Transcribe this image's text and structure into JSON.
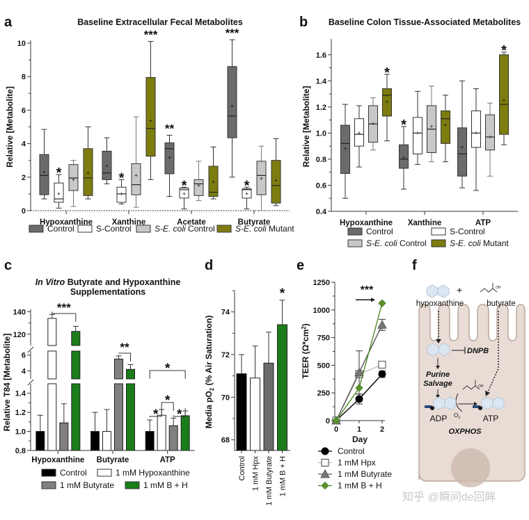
{
  "colors": {
    "control_dark": "#6b6b6b",
    "s_control": "#ffffff",
    "s_ecoli_control": "#c8c8c8",
    "s_ecoli_mutant": "#7d7d0f",
    "black": "#000000",
    "butyrate_gray": "#808080",
    "bh_green": "#1a7d1a",
    "cell_fill": "#e8dcd5",
    "cell_stroke": "#b9a79c",
    "molecule": "#dbe6f2",
    "watermark": "#c8c8c8"
  },
  "panels": {
    "a": {
      "letter": "a"
    },
    "b": {
      "letter": "b"
    },
    "c": {
      "letter": "c"
    },
    "d": {
      "letter": "d"
    },
    "e": {
      "letter": "e"
    },
    "f": {
      "letter": "f"
    }
  },
  "chart_data": [
    {
      "id": "a",
      "type": "box",
      "title": "Baseline Extracellular Fecal Metabolites",
      "ylabel": "Relative [Metabolite]",
      "xlabel": "",
      "ylim": [
        0,
        10
      ],
      "yticks": [
        0,
        2,
        4,
        6,
        8,
        10
      ],
      "categories": [
        "Hypoxanthine",
        "Xanthine",
        "Acetate",
        "Butyrate"
      ],
      "legend": [
        "Control",
        "S-Control",
        "S-E. coli Control",
        "S-E. coli Mutant"
      ],
      "legend_position": "bottom",
      "series": [
        {
          "name": "Control",
          "boxes": [
            {
              "min": 0.7,
              "q1": 0.95,
              "median": 2.1,
              "q3": 3.35,
              "max": 4.85,
              "mean": 2.3
            },
            {
              "min": 1.6,
              "q1": 1.85,
              "median": 2.25,
              "q3": 3.55,
              "max": 4.35,
              "mean": 2.65
            },
            {
              "min": 0.85,
              "q1": 2.2,
              "median": 3.7,
              "q3": 4.05,
              "max": 4.5,
              "mean": 3.15
            },
            {
              "min": 2.0,
              "q1": 4.35,
              "median": 5.65,
              "q3": 8.6,
              "max": 10.2,
              "mean": 6.25
            }
          ]
        },
        {
          "name": "S-Control",
          "boxes": [
            {
              "min": 0.15,
              "q1": 0.5,
              "median": 0.7,
              "q3": 1.65,
              "max": 2.15,
              "mean": 1.0
            },
            {
              "min": 0.4,
              "q1": 0.5,
              "median": 1.0,
              "q3": 1.4,
              "max": 1.85,
              "mean": 1.0
            },
            {
              "min": 0.1,
              "q1": 0.75,
              "median": 1.25,
              "q3": 1.35,
              "max": 1.4,
              "mean": 1.0
            },
            {
              "min": 0.1,
              "q1": 0.75,
              "median": 1.25,
              "q3": 1.3,
              "max": 1.4,
              "mean": 1.0
            }
          ]
        },
        {
          "name": "S-E. coli Control",
          "boxes": [
            {
              "min": 0.25,
              "q1": 1.2,
              "median": 1.95,
              "q3": 2.75,
              "max": 3.0,
              "mean": 1.85
            },
            {
              "min": 0.2,
              "q1": 0.95,
              "median": 1.55,
              "q3": 2.8,
              "max": 5.6,
              "mean": 2.1
            },
            {
              "min": 0.6,
              "q1": 0.9,
              "median": 1.6,
              "q3": 1.85,
              "max": 2.95,
              "mean": 1.5
            },
            {
              "min": 0.0,
              "q1": 0.95,
              "median": 2.1,
              "q3": 2.95,
              "max": 3.85,
              "mean": 1.9
            }
          ]
        },
        {
          "name": "S-E. coli Mutant",
          "boxes": [
            {
              "min": 0.7,
              "q1": 0.9,
              "median": 1.95,
              "q3": 3.7,
              "max": 5.0,
              "mean": 2.25
            },
            {
              "min": 1.85,
              "q1": 3.25,
              "median": 4.9,
              "q3": 7.95,
              "max": 10.1,
              "mean": 5.35
            },
            {
              "min": 0.7,
              "q1": 0.85,
              "median": 1.1,
              "q3": 2.65,
              "max": 3.8,
              "mean": 1.7
            },
            {
              "min": 0.3,
              "q1": 0.45,
              "median": 1.5,
              "q3": 3.0,
              "max": 4.3,
              "mean": 1.8
            }
          ]
        }
      ],
      "annotations": [
        {
          "category": 0,
          "series": 1,
          "text": "*"
        },
        {
          "category": 1,
          "series": 1,
          "text": "*"
        },
        {
          "category": 1,
          "series": 3,
          "text": "***"
        },
        {
          "category": 2,
          "series": 0,
          "text": "**"
        },
        {
          "category": 2,
          "series": 1,
          "text": "*"
        },
        {
          "category": 3,
          "series": 0,
          "text": "***"
        },
        {
          "category": 3,
          "series": 1,
          "text": "*"
        }
      ]
    },
    {
      "id": "b",
      "type": "box",
      "title": "Baseline Colon Tissue-Associated Metabolites",
      "ylabel": "Relative [Metabolite]",
      "xlabel": "",
      "ylim": [
        0.4,
        1.7
      ],
      "yticks": [
        0.4,
        0.6,
        0.8,
        1.0,
        1.2,
        1.4,
        1.6
      ],
      "categories": [
        "Hypoxanthine",
        "Xanthine",
        "ATP"
      ],
      "legend": [
        "Control",
        "S-Control",
        "S-E. coli Control",
        "S-E. coli Mutant"
      ],
      "legend_position": "bottom",
      "series": [
        {
          "name": "Control",
          "boxes": [
            {
              "min": 0.5,
              "q1": 0.69,
              "median": 0.92,
              "q3": 1.06,
              "max": 1.22,
              "mean": 0.88
            },
            {
              "min": 0.57,
              "q1": 0.73,
              "median": 0.8,
              "q3": 0.91,
              "max": 1.05,
              "mean": 0.81
            },
            {
              "min": 0.58,
              "q1": 0.67,
              "median": 0.84,
              "q3": 1.04,
              "max": 1.4,
              "mean": 0.89
            }
          ]
        },
        {
          "name": "S-Control",
          "boxes": [
            {
              "min": 0.74,
              "q1": 0.9,
              "median": 0.99,
              "q3": 1.11,
              "max": 1.21,
              "mean": 1.0
            },
            {
              "min": 0.76,
              "q1": 0.84,
              "median": 1.0,
              "q3": 1.12,
              "max": 1.32,
              "mean": 1.0
            },
            {
              "min": 0.56,
              "q1": 0.89,
              "median": 1.0,
              "q3": 1.17,
              "max": 1.34,
              "mean": 1.0
            }
          ]
        },
        {
          "name": "S-E. coli Control",
          "boxes": [
            {
              "min": 0.87,
              "q1": 0.93,
              "median": 1.07,
              "q3": 1.21,
              "max": 1.27,
              "mean": 1.07
            },
            {
              "min": 0.78,
              "q1": 0.85,
              "median": 1.03,
              "q3": 1.21,
              "max": 1.36,
              "mean": 1.05
            },
            {
              "min": 0.67,
              "q1": 0.87,
              "median": 0.97,
              "q3": 1.14,
              "max": 1.23,
              "mean": 0.97
            }
          ]
        },
        {
          "name": "S-E. coli Mutant",
          "boxes": [
            {
              "min": 0.94,
              "q1": 1.13,
              "median": 1.29,
              "q3": 1.34,
              "max": 1.45,
              "mean": 1.24
            },
            {
              "min": 0.78,
              "q1": 0.92,
              "median": 1.11,
              "q3": 1.17,
              "max": 1.29,
              "mean": 1.06
            },
            {
              "min": 0.91,
              "q1": 0.99,
              "median": 1.22,
              "q3": 1.6,
              "max": 1.62,
              "mean": 1.25
            }
          ]
        }
      ],
      "annotations": [
        {
          "category": 0,
          "series": 3,
          "text": "*"
        },
        {
          "category": 1,
          "series": 0,
          "text": "*"
        },
        {
          "category": 2,
          "series": 3,
          "text": "*"
        }
      ]
    },
    {
      "id": "c",
      "type": "bar",
      "title_italic": "In Vitro",
      "title_rest": " Butyrate and Hypoxanthine",
      "title_line2": "Supplementations",
      "ylabel": "Relative T84 [Metabolite]",
      "xlabel": "",
      "axis_segments": [
        {
          "ylim": [
            0.8,
            1.5
          ],
          "yticks": [
            0.8,
            1.0,
            1.2,
            1.4
          ]
        },
        {
          "ylim": [
            3,
            6.5
          ],
          "yticks": [
            4,
            6
          ]
        },
        {
          "ylim": [
            110,
            142
          ],
          "yticks": [
            120,
            140
          ]
        }
      ],
      "categories": [
        "Hypoxanthine",
        "Butyrate",
        "ATP"
      ],
      "legend": [
        "Control",
        "1 mM Hypoxanthine",
        "1 mM Butyrate",
        "1 mM B + H"
      ],
      "legend_position": "bottom",
      "series": [
        {
          "name": "Control",
          "values": [
            1.0,
            1.0,
            1.0
          ],
          "errors": [
            0.17,
            0.2,
            0.12
          ]
        },
        {
          "name": "1 mM Hypoxanthine",
          "values": [
            134,
            1.0,
            1.17
          ],
          "errors": [
            3.5,
            0.23,
            0.06
          ]
        },
        {
          "name": "1 mM Butyrate",
          "values": [
            1.09,
            5.5,
            1.06
          ],
          "errors": [
            0.2,
            0.4,
            0.08
          ]
        },
        {
          "name": "1 mM B + H",
          "values": [
            122.5,
            4.2,
            1.165
          ],
          "errors": [
            4.5,
            0.6,
            0.05
          ]
        }
      ],
      "brackets": [
        {
          "category": 0,
          "from": 1,
          "to": 3,
          "text": "***"
        },
        {
          "category": 1,
          "from": 2,
          "to": 3,
          "text": "**"
        },
        {
          "category": 2,
          "from": 0,
          "to": 1,
          "text": "*"
        },
        {
          "category": 2,
          "from": 2,
          "to": 3,
          "text": "*"
        },
        {
          "category": 2,
          "from": 1,
          "to": 2,
          "text": "*"
        },
        {
          "category": 2,
          "from": 0,
          "to": 3,
          "text": "*"
        }
      ]
    },
    {
      "id": "d",
      "type": "bar",
      "ylabel": "Media pO2 (% Air Saturation)",
      "ylabel_main": "Media pO",
      "ylabel_sub": "2",
      "ylabel_rest": " (% Air Saturation)",
      "xlabel": "",
      "ylim": [
        67.5,
        75
      ],
      "yticks": [
        68,
        70,
        72,
        74
      ],
      "categories": [
        "Control",
        "1 mM Hpx",
        "1 mM Butyrate",
        "1 mM B + H"
      ],
      "values": [
        71.1,
        70.9,
        71.6,
        73.4
      ],
      "errors": [
        0.9,
        1.5,
        1.45,
        1.15
      ],
      "annotations": [
        {
          "category": 3,
          "text": "*"
        }
      ]
    },
    {
      "id": "e",
      "type": "line",
      "ylabel": "TEER (Ω*cm²)",
      "ylabel_main": "TEER (Ω*cm",
      "ylabel_sup": "2",
      "ylabel_end": ")",
      "xlabel": "Day",
      "xlim": [
        0,
        2
      ],
      "xticks": [
        0,
        1,
        2
      ],
      "ylim": [
        0,
        1250
      ],
      "yticks": [
        0,
        250,
        500,
        750,
        1000,
        1250
      ],
      "legend": [
        "Control",
        "1 mM Hpx",
        "1 mM Butyrate",
        "1 mM B + H"
      ],
      "legend_position": "bottom",
      "series": [
        {
          "name": "Control",
          "marker": "circle",
          "x": [
            0,
            1,
            2
          ],
          "y": [
            0,
            195,
            420
          ],
          "errors": [
            0,
            45,
            30
          ]
        },
        {
          "name": "1 mM Hpx",
          "marker": "square",
          "x": [
            0,
            1,
            2
          ],
          "y": [
            0,
            420,
            505
          ],
          "errors": [
            0,
            30,
            0
          ]
        },
        {
          "name": "1 mM Butyrate",
          "marker": "triangle",
          "x": [
            0,
            1,
            2
          ],
          "y": [
            0,
            435,
            865
          ],
          "errors": [
            0,
            195,
            50
          ]
        },
        {
          "name": "1 mM B + H",
          "marker": "diamond",
          "x": [
            0,
            1,
            2
          ],
          "y": [
            0,
            295,
            1060
          ],
          "errors": [
            0,
            0,
            0
          ]
        }
      ],
      "annotations": [
        {
          "text": "***",
          "arrow": true,
          "x": 2,
          "y": 1060
        }
      ]
    }
  ],
  "diagram": {
    "labels": {
      "hypoxanthine": "hypoxanthine",
      "plus": "+",
      "butyrate": "butyrate",
      "dnpb": "DNPB",
      "purine_salvage_1": "Purine",
      "purine_salvage_2": "Salvage",
      "adp": "ADP",
      "atp": "ATP",
      "o2": "O",
      "o2_sub": "2",
      "oxphos": "OXPHOS",
      "oh": "OH"
    }
  },
  "watermark": "知乎 @瞬间de回眸"
}
